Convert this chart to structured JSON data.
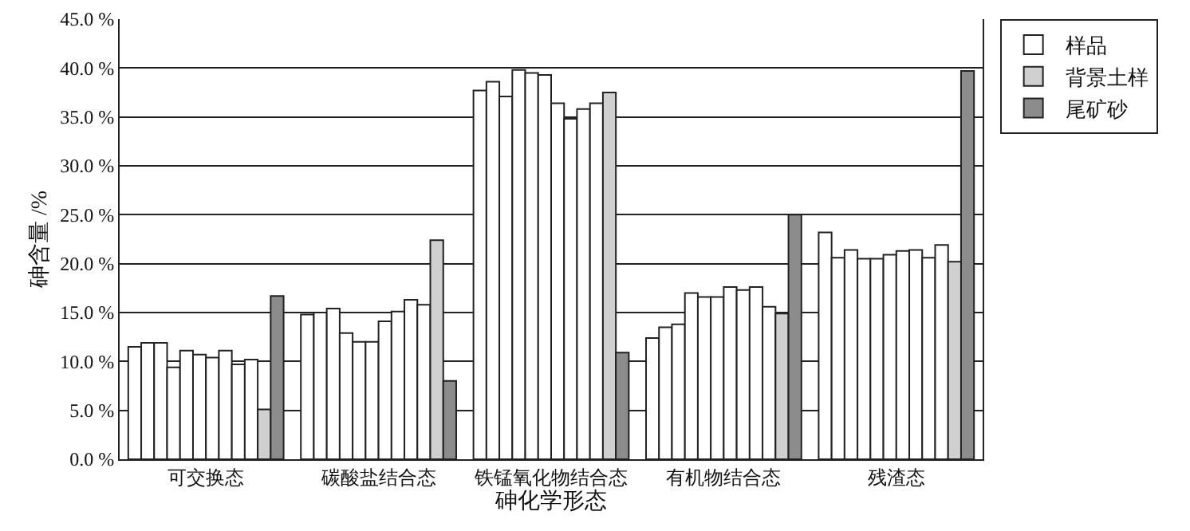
{
  "chart_data": {
    "type": "bar",
    "xlabel": "砷化学形态",
    "ylabel": "砷含量 /%",
    "categories": [
      "可交换态",
      "碳酸盐结合态",
      "铁锰氧化物结合态",
      "有机物结合态",
      "残渣态"
    ],
    "series": [
      {
        "name": "样品",
        "color": "#ffffff",
        "values": [
          11.5,
          14.8,
          37.7,
          12.4,
          23.2
        ]
      },
      {
        "color": "#ffffff",
        "values": [
          11.9,
          15.0,
          38.6,
          13.5,
          20.6
        ]
      },
      {
        "color": "#ffffff",
        "values": [
          11.9,
          15.4,
          37.1,
          13.8,
          21.4
        ]
      },
      {
        "color": "#ffffff",
        "values": [
          9.4,
          12.9,
          39.8,
          17.0,
          20.5
        ]
      },
      {
        "color": "#ffffff",
        "values": [
          11.1,
          12.0,
          39.5,
          16.6,
          20.5
        ]
      },
      {
        "color": "#ffffff",
        "values": [
          10.7,
          12.0,
          39.3,
          16.6,
          20.9
        ]
      },
      {
        "color": "#ffffff",
        "values": [
          10.4,
          14.1,
          36.4,
          17.6,
          21.3
        ]
      },
      {
        "color": "#ffffff",
        "values": [
          11.1,
          15.1,
          34.8,
          17.3,
          21.4
        ]
      },
      {
        "color": "#ffffff",
        "values": [
          9.7,
          16.3,
          35.8,
          17.6,
          20.6
        ]
      },
      {
        "color": "#ffffff",
        "values": [
          10.2,
          15.8,
          36.4,
          15.6,
          21.9
        ]
      },
      {
        "name": "背景土样",
        "color": "#d0d0d0",
        "values": [
          5.1,
          22.4,
          37.5,
          14.9,
          20.2
        ]
      },
      {
        "name": "尾矿砂",
        "color": "#8c8c8c",
        "values": [
          16.7,
          8.0,
          10.9,
          25.0,
          39.7
        ]
      }
    ],
    "ylim": [
      0,
      45
    ],
    "yticks": [
      {
        "value": 0,
        "label": "0.0 %"
      },
      {
        "value": 5,
        "label": "5.0 %"
      },
      {
        "value": 10,
        "label": "10.0 %"
      },
      {
        "value": 15,
        "label": "15.0 %"
      },
      {
        "value": 20,
        "label": "20.0 %"
      },
      {
        "value": 25,
        "label": "25.0 %"
      },
      {
        "value": 30,
        "label": "30.0 %"
      },
      {
        "value": 35,
        "label": "35.0 %"
      },
      {
        "value": 40,
        "label": "40.0 %"
      },
      {
        "value": 45,
        "label": "45.0 %"
      }
    ],
    "grid": "y",
    "legend": "top right"
  }
}
